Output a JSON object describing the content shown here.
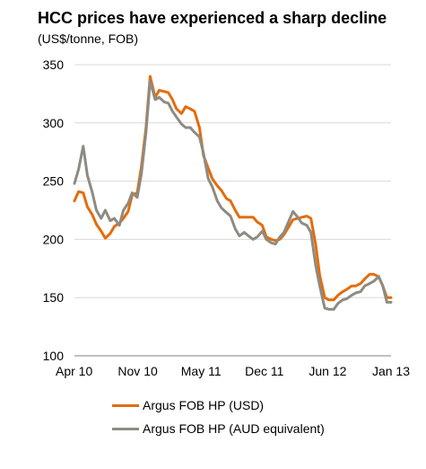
{
  "header": {
    "title": "HCC prices have experienced a sharp decline",
    "subtitle": "(US$/tonne, FOB)"
  },
  "chart_data": {
    "type": "line",
    "title": "HCC prices have experienced a sharp decline",
    "ylabel": "(US$/tonne, FOB)",
    "ylim": [
      100,
      350
    ],
    "yticks": [
      100,
      150,
      200,
      250,
      300,
      350
    ],
    "xticks": [
      "Apr 10",
      "Nov 10",
      "May 11",
      "Dec 11",
      "Jun 12",
      "Jan 13"
    ],
    "grid": "horizontal",
    "legend_position": "bottom",
    "x": [
      "2010-04-01",
      "2010-04-15",
      "2010-05-01",
      "2010-05-15",
      "2010-06-01",
      "2010-06-15",
      "2010-07-01",
      "2010-07-15",
      "2010-08-01",
      "2010-08-15",
      "2010-09-01",
      "2010-09-15",
      "2010-10-01",
      "2010-10-15",
      "2010-11-01",
      "2010-11-15",
      "2010-12-01",
      "2010-12-15",
      "2011-01-01",
      "2011-01-15",
      "2011-02-01",
      "2011-02-15",
      "2011-03-01",
      "2011-03-15",
      "2011-04-01",
      "2011-04-15",
      "2011-05-01",
      "2011-05-15",
      "2011-06-01",
      "2011-06-15",
      "2011-07-01",
      "2011-07-15",
      "2011-08-01",
      "2011-08-15",
      "2011-09-01",
      "2011-09-15",
      "2011-10-01",
      "2011-10-15",
      "2011-11-01",
      "2011-11-15",
      "2011-12-01",
      "2011-12-15",
      "2012-01-01",
      "2012-01-15",
      "2012-02-01",
      "2012-02-15",
      "2012-03-01",
      "2012-03-15",
      "2012-04-01",
      "2012-04-15",
      "2012-05-01",
      "2012-05-15",
      "2012-06-01",
      "2012-06-15",
      "2012-07-01",
      "2012-07-15",
      "2012-08-01",
      "2012-08-15",
      "2012-09-01",
      "2012-09-15",
      "2012-10-01",
      "2012-10-15",
      "2012-11-01",
      "2012-11-15",
      "2012-12-01",
      "2012-12-15",
      "2013-01-01",
      "2013-01-15",
      "2013-02-01",
      "2013-02-15",
      "2013-03-01",
      "2013-03-15"
    ],
    "series": [
      {
        "name": "Argus FOB HP (USD)",
        "color": "#E46C0A",
        "values": [
          233,
          241,
          240,
          228,
          221,
          213,
          207,
          201,
          205,
          211,
          214,
          218,
          224,
          238,
          240,
          262,
          296,
          340,
          322,
          328,
          327,
          326,
          320,
          312,
          308,
          314,
          312,
          310,
          296,
          272,
          261,
          252,
          246,
          242,
          235,
          233,
          225,
          219,
          219,
          219,
          219,
          215,
          212,
          202,
          200,
          199,
          200,
          204,
          211,
          217,
          218,
          219,
          220,
          218,
          196,
          169,
          150,
          148,
          148,
          152,
          155,
          157,
          160,
          160,
          162,
          166,
          170,
          170,
          168,
          160,
          150,
          150
        ]
      },
      {
        "name": "Argus FOB HP (AUD equivalent)",
        "color": "#8E8B82",
        "values": [
          248,
          260,
          280,
          255,
          240,
          225,
          218,
          225,
          216,
          218,
          212,
          225,
          231,
          240,
          236,
          256,
          292,
          336,
          320,
          322,
          318,
          317,
          310,
          305,
          299,
          296,
          296,
          292,
          288,
          274,
          252,
          245,
          233,
          227,
          223,
          220,
          209,
          203,
          206,
          203,
          200,
          202,
          207,
          200,
          197,
          196,
          202,
          206,
          216,
          224,
          219,
          214,
          212,
          206,
          178,
          160,
          141,
          140,
          140,
          145,
          148,
          149,
          152,
          154,
          155,
          160,
          162,
          164,
          168,
          160,
          146,
          146
        ]
      }
    ]
  }
}
